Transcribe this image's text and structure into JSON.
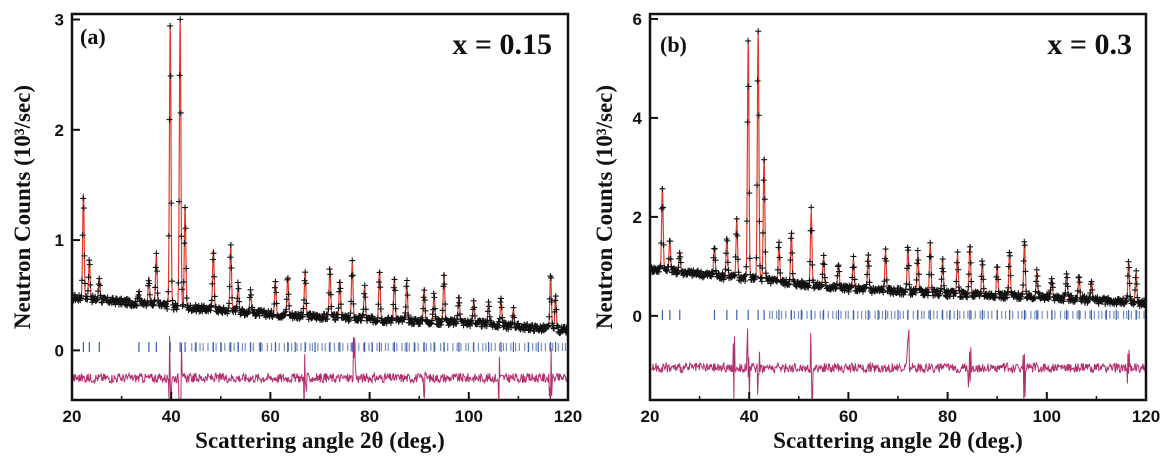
{
  "chart_data": [
    {
      "type": "line",
      "panel_label": "(a)",
      "annotation": "x = 0.15",
      "xlabel": "Scattering angle 2θ (deg.)",
      "ylabel": "Neutron Counts (10³/sec)",
      "xlim": [
        20,
        120
      ],
      "ylim": [
        -0.45,
        3.05
      ],
      "xticks": [
        20,
        40,
        60,
        80,
        100,
        120
      ],
      "yticks": [
        0,
        1,
        2,
        3
      ],
      "background": {
        "x": [
          20,
          40,
          60,
          80,
          100,
          120
        ],
        "y": [
          0.48,
          0.4,
          0.33,
          0.28,
          0.25,
          0.18
        ]
      },
      "peaks": [
        {
          "x": 22.3,
          "height": 0.95
        },
        {
          "x": 23.5,
          "height": 0.35
        },
        {
          "x": 25.5,
          "height": 0.2
        },
        {
          "x": 33.5,
          "height": 0.12
        },
        {
          "x": 35.5,
          "height": 0.25
        },
        {
          "x": 37.0,
          "height": 0.45
        },
        {
          "x": 39.8,
          "height": 2.55
        },
        {
          "x": 41.8,
          "height": 2.6
        },
        {
          "x": 42.8,
          "height": 0.9
        },
        {
          "x": 48.5,
          "height": 0.55
        },
        {
          "x": 52.0,
          "height": 0.6
        },
        {
          "x": 53.5,
          "height": 0.25
        },
        {
          "x": 56.0,
          "height": 0.2
        },
        {
          "x": 61.0,
          "height": 0.3
        },
        {
          "x": 63.5,
          "height": 0.35
        },
        {
          "x": 67.0,
          "height": 0.4
        },
        {
          "x": 72.0,
          "height": 0.45
        },
        {
          "x": 74.0,
          "height": 0.35
        },
        {
          "x": 76.5,
          "height": 0.5
        },
        {
          "x": 79.0,
          "height": 0.3
        },
        {
          "x": 82.0,
          "height": 0.45
        },
        {
          "x": 85.0,
          "height": 0.4
        },
        {
          "x": 87.5,
          "height": 0.35
        },
        {
          "x": 91.0,
          "height": 0.3
        },
        {
          "x": 93.0,
          "height": 0.25
        },
        {
          "x": 95.0,
          "height": 0.45
        },
        {
          "x": 98.0,
          "height": 0.25
        },
        {
          "x": 101.0,
          "height": 0.2
        },
        {
          "x": 104.0,
          "height": 0.2
        },
        {
          "x": 106.5,
          "height": 0.25
        },
        {
          "x": 109.0,
          "height": 0.15
        },
        {
          "x": 116.5,
          "height": 0.5
        },
        {
          "x": 117.5,
          "height": 0.3
        }
      ],
      "bragg_row_y": 0.03,
      "bragg_positions": [
        22.3,
        23.5,
        25.5,
        33.5,
        35.5,
        37.0,
        39.8,
        41.8,
        42.8,
        45.0,
        48.5,
        50.0,
        52.0,
        53.5,
        56.0,
        58.0,
        61.0,
        63.5,
        65.0,
        67.0,
        69.0,
        72.0,
        74.0,
        76.5,
        79.0,
        80.5,
        82.0,
        85.0,
        87.5,
        89.0,
        91.0,
        93.0,
        95.0,
        98.0,
        101.0,
        104.0,
        106.5,
        109.0,
        112.0,
        114.0,
        116.5,
        117.5
      ],
      "difference_offset": -0.25,
      "difference_big": [
        39.8,
        41.8,
        67.0,
        77.0,
        91.0,
        106.0,
        116.5
      ],
      "colors": {
        "observed": "#111111",
        "calculated": "#e03b2a",
        "bragg": "#3c5fa8",
        "difference": "#b2306e"
      }
    },
    {
      "type": "line",
      "panel_label": "(b)",
      "annotation": "x = 0.3",
      "xlabel": "Scattering angle 2θ (deg.)",
      "ylabel": "Neutron Counts (10³/sec)",
      "xlim": [
        20,
        120
      ],
      "ylim": [
        -1.7,
        6.1
      ],
      "xticks": [
        20,
        40,
        60,
        80,
        100,
        120
      ],
      "yticks": [
        0,
        2,
        4,
        6
      ],
      "background": {
        "x": [
          20,
          40,
          60,
          80,
          100,
          120
        ],
        "y": [
          0.95,
          0.75,
          0.55,
          0.45,
          0.38,
          0.25
        ]
      },
      "peaks": [
        {
          "x": 22.5,
          "height": 1.7
        },
        {
          "x": 24.0,
          "height": 0.6
        },
        {
          "x": 26.0,
          "height": 0.4
        },
        {
          "x": 33.0,
          "height": 0.6
        },
        {
          "x": 35.5,
          "height": 0.8
        },
        {
          "x": 37.5,
          "height": 1.2
        },
        {
          "x": 39.8,
          "height": 4.8
        },
        {
          "x": 41.8,
          "height": 5.0
        },
        {
          "x": 43.0,
          "height": 2.5
        },
        {
          "x": 46.0,
          "height": 0.8
        },
        {
          "x": 48.5,
          "height": 1.0
        },
        {
          "x": 52.5,
          "height": 1.5
        },
        {
          "x": 55.0,
          "height": 0.6
        },
        {
          "x": 58.0,
          "height": 0.5
        },
        {
          "x": 61.0,
          "height": 0.6
        },
        {
          "x": 64.0,
          "height": 0.7
        },
        {
          "x": 67.5,
          "height": 0.8
        },
        {
          "x": 72.0,
          "height": 0.9
        },
        {
          "x": 74.0,
          "height": 0.8
        },
        {
          "x": 76.5,
          "height": 1.0
        },
        {
          "x": 79.0,
          "height": 0.7
        },
        {
          "x": 82.0,
          "height": 0.8
        },
        {
          "x": 84.5,
          "height": 1.0
        },
        {
          "x": 87.0,
          "height": 0.7
        },
        {
          "x": 90.0,
          "height": 0.6
        },
        {
          "x": 92.5,
          "height": 0.9
        },
        {
          "x": 95.5,
          "height": 1.1
        },
        {
          "x": 98.0,
          "height": 0.5
        },
        {
          "x": 101.0,
          "height": 0.4
        },
        {
          "x": 104.0,
          "height": 0.5
        },
        {
          "x": 106.5,
          "height": 0.5
        },
        {
          "x": 109.0,
          "height": 0.4
        },
        {
          "x": 116.5,
          "height": 0.8
        },
        {
          "x": 118.0,
          "height": 0.6
        }
      ],
      "bragg_row_y": 0.02,
      "bragg_positions": [
        22.5,
        24.0,
        26.0,
        33.0,
        35.5,
        37.5,
        39.8,
        41.8,
        43.0,
        46.0,
        48.5,
        50.5,
        52.5,
        55.0,
        58.0,
        61.0,
        64.0,
        66.0,
        67.5,
        70.0,
        72.0,
        74.0,
        76.5,
        79.0,
        80.5,
        82.0,
        84.5,
        87.0,
        90.0,
        92.5,
        95.5,
        98.0,
        101.0,
        104.0,
        106.5,
        109.0,
        112.0,
        114.0,
        116.5,
        118.0
      ],
      "difference_offset": -1.05,
      "difference_big": [
        36.8,
        39.8,
        41.8,
        52.5,
        72.0,
        84.5,
        95.5,
        116.5
      ],
      "colors": {
        "observed": "#111111",
        "calculated": "#e03b2a",
        "bragg": "#3c5fa8",
        "difference": "#b2306e"
      }
    }
  ]
}
